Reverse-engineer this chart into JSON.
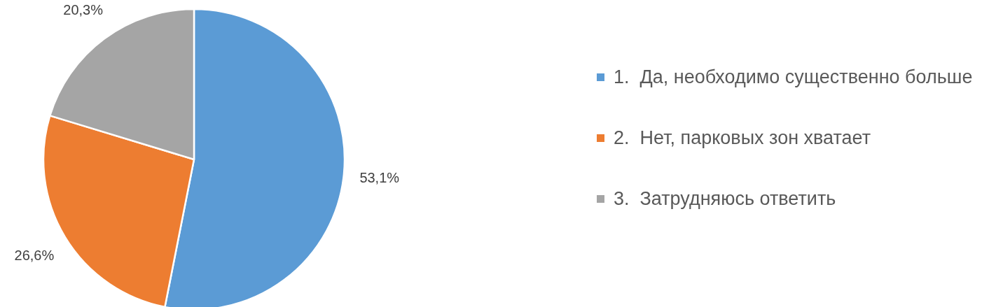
{
  "chart_data": {
    "type": "pie",
    "categories": [
      "1.  Да, необходимо существенно больше",
      "2.  Нет, парковых зон хватает",
      "3.  Затрудняюсь ответить"
    ],
    "values": [
      53.1,
      26.6,
      20.3
    ],
    "colors": [
      "#5b9bd5",
      "#ed7d31",
      "#a5a5a5"
    ],
    "value_labels": [
      "53,1%",
      "26,6%",
      "20,3%"
    ],
    "legend": "right"
  }
}
